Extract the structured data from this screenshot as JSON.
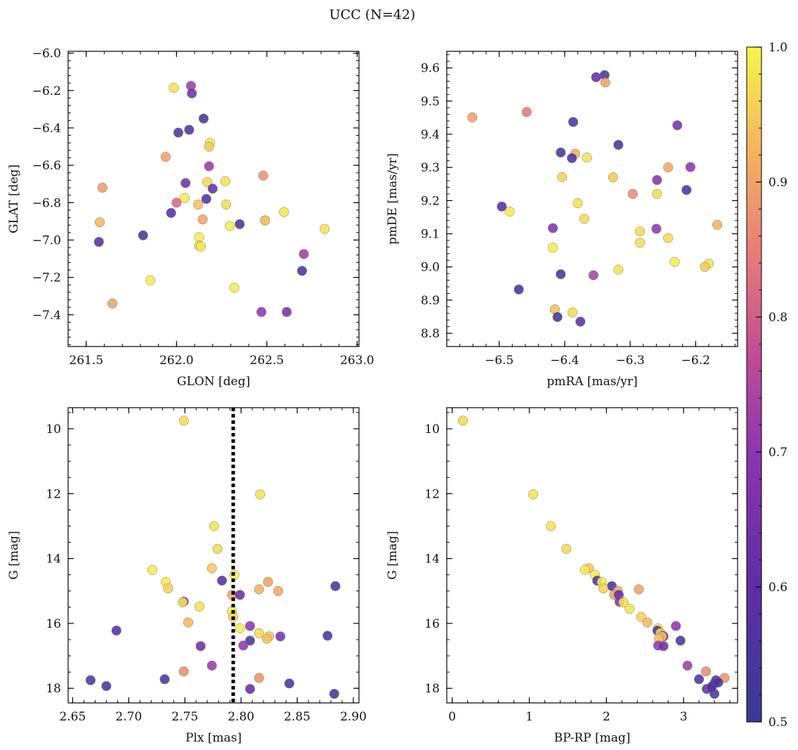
{
  "figure": {
    "title": "UCC (N=42)"
  },
  "colorbar": {
    "colormap": "plasma",
    "range": [
      0.5,
      1.0
    ],
    "ticks": [
      "0.5",
      "0.6",
      "0.7",
      "0.8",
      "0.9",
      "1.0"
    ]
  },
  "chart_data": [
    {
      "type": "scatter",
      "panel": "top-left",
      "xlabel": "GLON [deg]",
      "ylabel": "GLAT [deg]",
      "xlim": [
        261.4,
        263.01
      ],
      "ylim": [
        -7.57,
        -5.99
      ],
      "xticks": [
        "261.5",
        "262.0",
        "262.5",
        "263.0"
      ],
      "yticks": [
        "−6.0",
        "−6.2",
        "−6.4",
        "−6.6",
        "−6.8",
        "−7.0",
        "−7.2",
        "−7.4"
      ],
      "points": [
        {
          "x": 262.08,
          "y": -6.175,
          "c": 0.72
        },
        {
          "x": 261.985,
          "y": -6.185,
          "c": 0.98
        },
        {
          "x": 262.085,
          "y": -6.215,
          "c": 0.63
        },
        {
          "x": 262.15,
          "y": -6.35,
          "c": 0.53
        },
        {
          "x": 262.07,
          "y": -6.41,
          "c": 0.57
        },
        {
          "x": 262.01,
          "y": -6.425,
          "c": 0.55
        },
        {
          "x": 262.185,
          "y": -6.48,
          "c": 0.99
        },
        {
          "x": 262.18,
          "y": -6.5,
          "c": 0.95
        },
        {
          "x": 261.94,
          "y": -6.555,
          "c": 0.9
        },
        {
          "x": 262.18,
          "y": -6.605,
          "c": 0.72
        },
        {
          "x": 262.48,
          "y": -6.655,
          "c": 0.88
        },
        {
          "x": 262.27,
          "y": -6.685,
          "c": 0.98
        },
        {
          "x": 262.17,
          "y": -6.69,
          "c": 0.97
        },
        {
          "x": 262.05,
          "y": -6.695,
          "c": 0.64
        },
        {
          "x": 261.59,
          "y": -6.72,
          "c": 0.89
        },
        {
          "x": 262.2,
          "y": -6.725,
          "c": 0.62
        },
        {
          "x": 262.045,
          "y": -6.775,
          "c": 0.99
        },
        {
          "x": 262.165,
          "y": -6.78,
          "c": 0.56
        },
        {
          "x": 262.0,
          "y": -6.8,
          "c": 0.82
        },
        {
          "x": 262.12,
          "y": -6.81,
          "c": 0.94
        },
        {
          "x": 262.275,
          "y": -6.81,
          "c": 0.97
        },
        {
          "x": 262.595,
          "y": -6.85,
          "c": 0.98
        },
        {
          "x": 261.97,
          "y": -6.855,
          "c": 0.59
        },
        {
          "x": 262.145,
          "y": -6.89,
          "c": 0.9
        },
        {
          "x": 262.49,
          "y": -6.895,
          "c": 0.75
        },
        {
          "x": 262.49,
          "y": -6.895,
          "c": 0.96
        },
        {
          "x": 261.575,
          "y": -6.905,
          "c": 0.93
        },
        {
          "x": 262.35,
          "y": -6.915,
          "c": 0.55
        },
        {
          "x": 262.295,
          "y": -6.925,
          "c": 0.99
        },
        {
          "x": 262.82,
          "y": -6.94,
          "c": 0.98
        },
        {
          "x": 261.815,
          "y": -6.975,
          "c": 0.53
        },
        {
          "x": 262.125,
          "y": -6.985,
          "c": 0.99
        },
        {
          "x": 261.57,
          "y": -7.01,
          "c": 0.57
        },
        {
          "x": 262.125,
          "y": -7.03,
          "c": 0.96
        },
        {
          "x": 262.135,
          "y": -7.035,
          "c": 0.99
        },
        {
          "x": 262.705,
          "y": -7.075,
          "c": 0.73
        },
        {
          "x": 262.695,
          "y": -7.165,
          "c": 0.53
        },
        {
          "x": 261.855,
          "y": -7.215,
          "c": 0.99
        },
        {
          "x": 262.32,
          "y": -7.255,
          "c": 0.99
        },
        {
          "x": 261.645,
          "y": -7.34,
          "c": 0.9
        },
        {
          "x": 262.47,
          "y": -7.385,
          "c": 0.7
        },
        {
          "x": 262.61,
          "y": -7.385,
          "c": 0.66
        }
      ]
    },
    {
      "type": "scatter",
      "panel": "top-right",
      "xlabel": "pmRA [mas/yr]",
      "ylabel": "pmDE [mas/yr]",
      "xlim": [
        -6.58,
        -6.136
      ],
      "ylim": [
        8.76,
        9.65
      ],
      "xticks": [
        "−6.5",
        "−6.4",
        "−6.3",
        "−6.2"
      ],
      "yticks": [
        "9.6",
        "9.5",
        "9.4",
        "9.3",
        "9.2",
        "9.1",
        "9.0",
        "8.9",
        "8.8"
      ],
      "points": [
        {
          "x": -6.339,
          "y": 9.578,
          "c": 0.53
        },
        {
          "x": -6.352,
          "y": 9.572,
          "c": 0.62
        },
        {
          "x": -6.338,
          "y": 9.556,
          "c": 0.9
        },
        {
          "x": -6.458,
          "y": 9.467,
          "c": 0.84
        },
        {
          "x": -6.541,
          "y": 9.451,
          "c": 0.9
        },
        {
          "x": -6.387,
          "y": 9.437,
          "c": 0.56
        },
        {
          "x": -6.228,
          "y": 9.427,
          "c": 0.65
        },
        {
          "x": -6.318,
          "y": 9.368,
          "c": 0.54
        },
        {
          "x": -6.406,
          "y": 9.345,
          "c": 0.55
        },
        {
          "x": -6.384,
          "y": 9.341,
          "c": 0.92
        },
        {
          "x": -6.366,
          "y": 9.33,
          "c": 0.98
        },
        {
          "x": -6.389,
          "y": 9.328,
          "c": 0.55
        },
        {
          "x": -6.208,
          "y": 9.301,
          "c": 0.7
        },
        {
          "x": -6.242,
          "y": 9.3,
          "c": 0.91
        },
        {
          "x": -6.404,
          "y": 9.271,
          "c": 0.96
        },
        {
          "x": -6.326,
          "y": 9.27,
          "c": 0.95
        },
        {
          "x": -6.214,
          "y": 9.232,
          "c": 0.56
        },
        {
          "x": -6.259,
          "y": 9.262,
          "c": 0.68
        },
        {
          "x": -6.296,
          "y": 9.22,
          "c": 0.87
        },
        {
          "x": -6.259,
          "y": 9.22,
          "c": 0.97
        },
        {
          "x": -6.38,
          "y": 9.192,
          "c": 0.98
        },
        {
          "x": -6.496,
          "y": 9.182,
          "c": 0.59
        },
        {
          "x": -6.484,
          "y": 9.167,
          "c": 0.99
        },
        {
          "x": -6.37,
          "y": 9.145,
          "c": 0.97
        },
        {
          "x": -6.167,
          "y": 9.127,
          "c": 0.92
        },
        {
          "x": -6.418,
          "y": 9.117,
          "c": 0.68
        },
        {
          "x": -6.26,
          "y": 9.115,
          "c": 0.7
        },
        {
          "x": -6.285,
          "y": 9.107,
          "c": 0.97
        },
        {
          "x": -6.242,
          "y": 9.087,
          "c": 0.97
        },
        {
          "x": -6.285,
          "y": 9.073,
          "c": 0.97
        },
        {
          "x": -6.418,
          "y": 9.058,
          "c": 0.99
        },
        {
          "x": -6.232,
          "y": 9.015,
          "c": 0.99
        },
        {
          "x": -6.18,
          "y": 9.01,
          "c": 0.98
        },
        {
          "x": -6.186,
          "y": 9.0,
          "c": 0.95
        },
        {
          "x": -6.318,
          "y": 8.992,
          "c": 0.98
        },
        {
          "x": -6.406,
          "y": 8.978,
          "c": 0.53
        },
        {
          "x": -6.356,
          "y": 8.975,
          "c": 0.74
        },
        {
          "x": -6.47,
          "y": 8.932,
          "c": 0.53
        },
        {
          "x": -6.415,
          "y": 8.872,
          "c": 0.94
        },
        {
          "x": -6.388,
          "y": 8.863,
          "c": 0.97
        },
        {
          "x": -6.411,
          "y": 8.849,
          "c": 0.53
        },
        {
          "x": -6.376,
          "y": 8.835,
          "c": 0.58
        }
      ]
    },
    {
      "type": "scatter",
      "panel": "bottom-left",
      "xlabel": "Plx [mas]",
      "ylabel": "G [mag]",
      "xlim": [
        2.646,
        2.905
      ],
      "ylim": [
        18.45,
        9.35
      ],
      "xticks": [
        "2.65",
        "2.70",
        "2.75",
        "2.80",
        "2.85",
        "2.90"
      ],
      "yticks": [
        "10",
        "12",
        "14",
        "16",
        "18"
      ],
      "vline": {
        "x": 2.793,
        "style": "dotted"
      },
      "points": [
        {
          "x": 2.749,
          "y": 9.75,
          "c": 0.97
        },
        {
          "x": 2.817,
          "y": 12.02,
          "c": 0.98
        },
        {
          "x": 2.776,
          "y": 13.0,
          "c": 0.98
        },
        {
          "x": 2.779,
          "y": 13.7,
          "c": 0.97
        },
        {
          "x": 2.774,
          "y": 14.3,
          "c": 0.95
        },
        {
          "x": 2.721,
          "y": 14.35,
          "c": 0.99
        },
        {
          "x": 2.794,
          "y": 14.5,
          "c": 0.99
        },
        {
          "x": 2.783,
          "y": 14.68,
          "c": 0.57
        },
        {
          "x": 2.733,
          "y": 14.72,
          "c": 0.99
        },
        {
          "x": 2.824,
          "y": 14.72,
          "c": 0.9
        },
        {
          "x": 2.884,
          "y": 14.85,
          "c": 0.54
        },
        {
          "x": 2.735,
          "y": 14.92,
          "c": 0.96
        },
        {
          "x": 2.816,
          "y": 14.95,
          "c": 0.92
        },
        {
          "x": 2.833,
          "y": 15.0,
          "c": 0.91
        },
        {
          "x": 2.792,
          "y": 15.12,
          "c": 0.9
        },
        {
          "x": 2.799,
          "y": 15.12,
          "c": 0.62
        },
        {
          "x": 2.749,
          "y": 15.33,
          "c": 0.65
        },
        {
          "x": 2.748,
          "y": 15.35,
          "c": 0.98
        },
        {
          "x": 2.763,
          "y": 15.48,
          "c": 0.98
        },
        {
          "x": 2.792,
          "y": 15.62,
          "c": 0.99
        },
        {
          "x": 2.793,
          "y": 15.8,
          "c": 0.96
        },
        {
          "x": 2.753,
          "y": 15.97,
          "c": 0.93
        },
        {
          "x": 2.808,
          "y": 16.08,
          "c": 0.7
        },
        {
          "x": 2.799,
          "y": 16.15,
          "c": 0.99
        },
        {
          "x": 2.689,
          "y": 16.22,
          "c": 0.58
        },
        {
          "x": 2.816,
          "y": 16.3,
          "c": 0.97
        },
        {
          "x": 2.877,
          "y": 16.38,
          "c": 0.54
        },
        {
          "x": 2.825,
          "y": 16.4,
          "c": 0.95
        },
        {
          "x": 2.835,
          "y": 16.4,
          "c": 0.65
        },
        {
          "x": 2.823,
          "y": 16.47,
          "c": 0.94
        },
        {
          "x": 2.808,
          "y": 16.53,
          "c": 0.54
        },
        {
          "x": 2.802,
          "y": 16.68,
          "c": 0.7
        },
        {
          "x": 2.764,
          "y": 16.7,
          "c": 0.63
        },
        {
          "x": 2.774,
          "y": 17.3,
          "c": 0.72
        },
        {
          "x": 2.749,
          "y": 17.48,
          "c": 0.87
        },
        {
          "x": 2.816,
          "y": 17.68,
          "c": 0.88
        },
        {
          "x": 2.732,
          "y": 17.72,
          "c": 0.55
        },
        {
          "x": 2.666,
          "y": 17.75,
          "c": 0.56
        },
        {
          "x": 2.843,
          "y": 17.85,
          "c": 0.55
        },
        {
          "x": 2.68,
          "y": 17.93,
          "c": 0.56
        },
        {
          "x": 2.808,
          "y": 18.02,
          "c": 0.62
        },
        {
          "x": 2.883,
          "y": 18.17,
          "c": 0.53
        }
      ]
    },
    {
      "type": "scatter",
      "panel": "bottom-right",
      "xlabel": "BP-RP [mag]",
      "ylabel": "G [mag]",
      "xlim": [
        -0.07,
        3.7
      ],
      "ylim": [
        18.45,
        9.35
      ],
      "xticks": [
        "0",
        "1",
        "2",
        "3"
      ],
      "yticks": [
        "10",
        "12",
        "14",
        "16",
        "18"
      ],
      "points": [
        {
          "x": 0.14,
          "y": 9.75,
          "c": 0.97
        },
        {
          "x": 1.05,
          "y": 12.02,
          "c": 0.98
        },
        {
          "x": 1.28,
          "y": 13.0,
          "c": 0.98
        },
        {
          "x": 1.48,
          "y": 13.7,
          "c": 0.97
        },
        {
          "x": 1.77,
          "y": 14.3,
          "c": 0.95
        },
        {
          "x": 1.72,
          "y": 14.35,
          "c": 0.99
        },
        {
          "x": 1.85,
          "y": 14.5,
          "c": 0.99
        },
        {
          "x": 1.88,
          "y": 14.68,
          "c": 0.57
        },
        {
          "x": 1.94,
          "y": 14.72,
          "c": 0.99
        },
        {
          "x": 2.42,
          "y": 14.95,
          "c": 0.9
        },
        {
          "x": 2.07,
          "y": 14.85,
          "c": 0.54
        },
        {
          "x": 1.96,
          "y": 14.92,
          "c": 0.96
        },
        {
          "x": 2.15,
          "y": 15.0,
          "c": 0.91
        },
        {
          "x": 2.1,
          "y": 15.12,
          "c": 0.9
        },
        {
          "x": 2.16,
          "y": 15.12,
          "c": 0.62
        },
        {
          "x": 2.17,
          "y": 15.33,
          "c": 0.65
        },
        {
          "x": 2.22,
          "y": 15.35,
          "c": 0.98
        },
        {
          "x": 2.3,
          "y": 15.55,
          "c": 0.98
        },
        {
          "x": 2.45,
          "y": 15.8,
          "c": 0.96
        },
        {
          "x": 2.53,
          "y": 15.97,
          "c": 0.93
        },
        {
          "x": 2.9,
          "y": 16.08,
          "c": 0.7
        },
        {
          "x": 2.67,
          "y": 16.15,
          "c": 0.99
        },
        {
          "x": 2.66,
          "y": 16.22,
          "c": 0.58
        },
        {
          "x": 2.7,
          "y": 16.3,
          "c": 0.97
        },
        {
          "x": 2.73,
          "y": 16.38,
          "c": 0.54
        },
        {
          "x": 2.74,
          "y": 16.4,
          "c": 0.65
        },
        {
          "x": 2.72,
          "y": 16.4,
          "c": 0.95
        },
        {
          "x": 2.68,
          "y": 16.47,
          "c": 0.94
        },
        {
          "x": 2.96,
          "y": 16.53,
          "c": 0.54
        },
        {
          "x": 2.67,
          "y": 16.68,
          "c": 0.7
        },
        {
          "x": 2.74,
          "y": 16.7,
          "c": 0.63
        },
        {
          "x": 3.05,
          "y": 17.3,
          "c": 0.72
        },
        {
          "x": 3.29,
          "y": 17.48,
          "c": 0.87
        },
        {
          "x": 3.53,
          "y": 17.68,
          "c": 0.88
        },
        {
          "x": 3.2,
          "y": 17.72,
          "c": 0.55
        },
        {
          "x": 3.42,
          "y": 17.75,
          "c": 0.56
        },
        {
          "x": 3.4,
          "y": 17.85,
          "c": 0.55
        },
        {
          "x": 3.37,
          "y": 17.93,
          "c": 0.56
        },
        {
          "x": 3.3,
          "y": 18.02,
          "c": 0.62
        },
        {
          "x": 3.4,
          "y": 18.17,
          "c": 0.53
        },
        {
          "x": 3.36,
          "y": 17.98,
          "c": 0.58
        },
        {
          "x": 3.45,
          "y": 17.82,
          "c": 0.55
        }
      ]
    }
  ]
}
